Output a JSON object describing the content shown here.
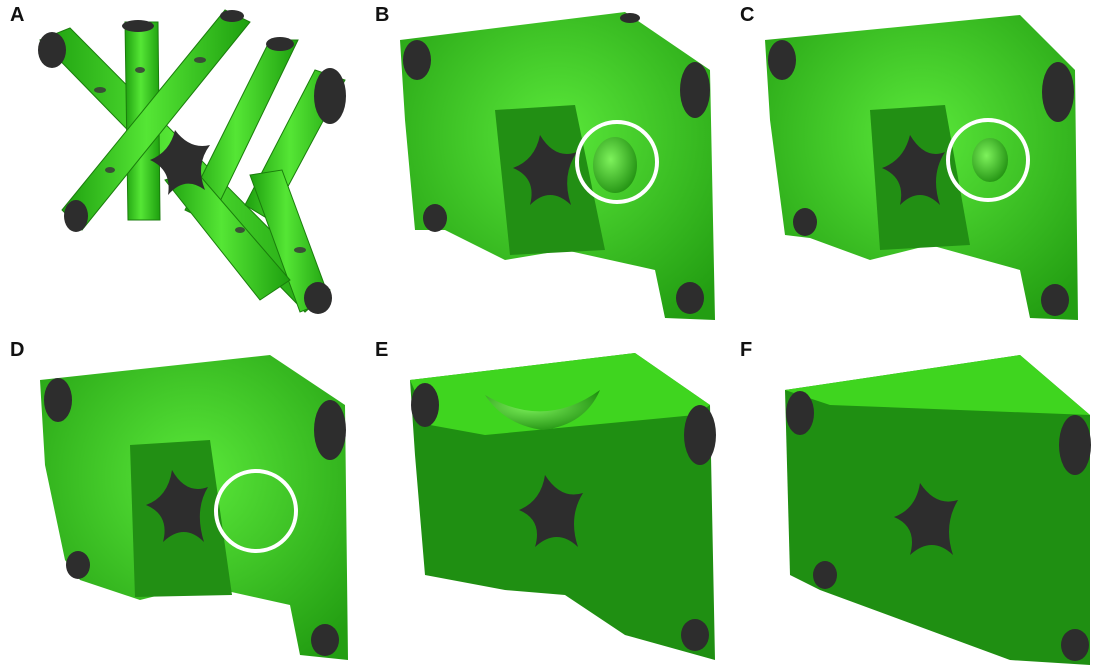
{
  "panels": [
    {
      "label": "A"
    },
    {
      "label": "B"
    },
    {
      "label": "C"
    },
    {
      "label": "D"
    },
    {
      "label": "E"
    },
    {
      "label": "F"
    }
  ],
  "colors": {
    "bright_green": "#3fd51f",
    "dark_green": "#1f8f12",
    "mid_green": "#2eb31a",
    "core_gray": "#333333",
    "highlight_circle": "#ffffff"
  }
}
